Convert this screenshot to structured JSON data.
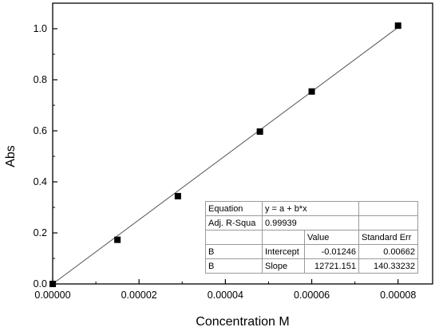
{
  "chart_data": {
    "type": "scatter",
    "title": "",
    "xlabel": "Concentration M",
    "ylabel": "Abs",
    "xlim": [
      0,
      8.8e-05
    ],
    "ylim": [
      0,
      1.1
    ],
    "x_ticks": [
      "0.00000",
      "0.00002",
      "0.00004",
      "0.00006",
      "0.00008"
    ],
    "x_tick_values": [
      0,
      2e-05,
      4e-05,
      6e-05,
      8e-05
    ],
    "y_ticks": [
      "0.0",
      "0.2",
      "0.4",
      "0.6",
      "0.8",
      "1.0"
    ],
    "y_tick_values": [
      0,
      0.2,
      0.4,
      0.6,
      0.8,
      1.0
    ],
    "grid": false,
    "legend": "none",
    "series": [
      {
        "x": [
          0,
          1.5e-05,
          2.9e-05,
          4.8e-05,
          6e-05,
          8e-05
        ],
        "y": [
          0.0,
          0.173,
          0.344,
          0.597,
          0.754,
          1.012
        ]
      }
    ],
    "fit_line": {
      "intercept": -0.01246,
      "slope": 12721.151,
      "x_range": [
        0,
        8e-05
      ]
    },
    "colors": {
      "marker": "#000000",
      "fit_line": "#555555",
      "axis": "#000000"
    }
  },
  "fit_table": {
    "rows": [
      [
        "Equation",
        "y = a + b*x",
        "",
        ""
      ],
      [
        "Adj. R-Squa",
        "0.99939",
        "",
        ""
      ],
      [
        "",
        "",
        "Value",
        "Standard Err"
      ],
      [
        "B",
        "Intercept",
        "-0.01246",
        "0.00662"
      ],
      [
        "B",
        "Slope",
        "12721.151",
        "140.33232"
      ]
    ]
  }
}
